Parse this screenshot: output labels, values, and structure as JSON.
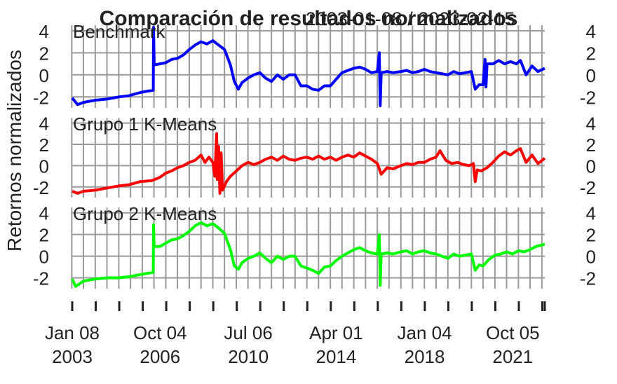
{
  "chart_data": {
    "type": "line",
    "title": "Comparación de resultados normalizados",
    "title_overlap": "2003-01-08 / 2023-02-15",
    "ylabel": "Retornos normalizados",
    "xlabel": "",
    "x_range": [
      "2003-01-08",
      "2023-02-15"
    ],
    "x_ticks": [
      {
        "date": "2003-01-08",
        "line1": "Jan 08",
        "line2": "2003"
      },
      {
        "date": "2006-10-04",
        "line1": "Oct 04",
        "line2": "2006"
      },
      {
        "date": "2010-07-06",
        "line1": "Jul 06",
        "line2": "2010"
      },
      {
        "date": "2014-04-01",
        "line1": "Apr 01",
        "line2": "2014"
      },
      {
        "date": "2018-01-04",
        "line1": "Jan 04",
        "line2": "2018"
      },
      {
        "date": "2021-10-05",
        "line1": "Oct 05",
        "line2": "2021"
      }
    ],
    "grid": true,
    "y_ticks": [
      "4",
      "2",
      "0",
      "-2"
    ],
    "panels": [
      {
        "name": "Benchmark",
        "color": "#0000FF",
        "ylim": [
          -3,
          4.5
        ],
        "points": [
          [
            "2003-01-08",
            -2.1
          ],
          [
            "2003-04-01",
            -2.7
          ],
          [
            "2003-07-01",
            -2.5
          ],
          [
            "2004-01-01",
            -2.3
          ],
          [
            "2004-07-01",
            -2.2
          ],
          [
            "2005-01-01",
            -2.0
          ],
          [
            "2005-06-01",
            -1.9
          ],
          [
            "2005-12-01",
            -1.6
          ],
          [
            "2006-03-01",
            -1.5
          ],
          [
            "2006-06-20",
            -1.4
          ],
          [
            "2006-06-25",
            4.3
          ],
          [
            "2006-07-05",
            0.9
          ],
          [
            "2006-10-01",
            1.0
          ],
          [
            "2007-01-01",
            1.1
          ],
          [
            "2007-04-01",
            1.4
          ],
          [
            "2007-07-01",
            1.5
          ],
          [
            "2007-10-01",
            1.8
          ],
          [
            "2008-01-01",
            2.3
          ],
          [
            "2008-04-01",
            2.7
          ],
          [
            "2008-07-01",
            3.0
          ],
          [
            "2008-10-01",
            2.8
          ],
          [
            "2009-01-01",
            3.1
          ],
          [
            "2009-04-01",
            2.7
          ],
          [
            "2009-07-01",
            2.3
          ],
          [
            "2009-10-01",
            0.9
          ],
          [
            "2009-12-01",
            -0.6
          ],
          [
            "2010-02-01",
            -1.3
          ],
          [
            "2010-04-01",
            -0.7
          ],
          [
            "2010-07-01",
            -0.3
          ],
          [
            "2010-10-01",
            0.0
          ],
          [
            "2011-01-01",
            0.2
          ],
          [
            "2011-04-01",
            -0.3
          ],
          [
            "2011-07-01",
            -0.6
          ],
          [
            "2011-10-01",
            0.0
          ],
          [
            "2012-01-01",
            -0.4
          ],
          [
            "2012-04-01",
            0.0
          ],
          [
            "2012-07-01",
            0.0
          ],
          [
            "2012-10-01",
            -1.0
          ],
          [
            "2013-01-01",
            -1.0
          ],
          [
            "2013-04-01",
            -1.3
          ],
          [
            "2013-07-01",
            -1.4
          ],
          [
            "2013-10-01",
            -1.0
          ],
          [
            "2014-01-01",
            -1.0
          ],
          [
            "2014-04-01",
            -0.4
          ],
          [
            "2014-07-01",
            0.2
          ],
          [
            "2014-10-01",
            0.4
          ],
          [
            "2015-01-01",
            0.6
          ],
          [
            "2015-04-01",
            0.7
          ],
          [
            "2015-07-01",
            0.5
          ],
          [
            "2015-10-01",
            0.2
          ],
          [
            "2016-01-01",
            0.3
          ],
          [
            "2016-02-01",
            2.0
          ],
          [
            "2016-02-15",
            -2.8
          ],
          [
            "2016-03-01",
            0.2
          ],
          [
            "2016-06-01",
            0.3
          ],
          [
            "2016-09-01",
            0.2
          ],
          [
            "2017-01-01",
            0.3
          ],
          [
            "2017-04-01",
            0.4
          ],
          [
            "2017-07-01",
            0.2
          ],
          [
            "2017-10-01",
            0.3
          ],
          [
            "2018-01-01",
            0.5
          ],
          [
            "2018-04-01",
            0.3
          ],
          [
            "2018-07-01",
            0.2
          ],
          [
            "2018-10-01",
            0.1
          ],
          [
            "2019-01-01",
            0.0
          ],
          [
            "2019-04-01",
            0.3
          ],
          [
            "2019-07-01",
            0.1
          ],
          [
            "2019-10-01",
            0.2
          ],
          [
            "2020-01-01",
            0.3
          ],
          [
            "2020-03-01",
            -1.3
          ],
          [
            "2020-05-01",
            -0.9
          ],
          [
            "2020-07-01",
            -0.9
          ],
          [
            "2020-08-01",
            1.4
          ],
          [
            "2020-08-15",
            -1.1
          ],
          [
            "2020-09-01",
            1.0
          ],
          [
            "2020-12-01",
            1.0
          ],
          [
            "2021-03-01",
            1.3
          ],
          [
            "2021-06-01",
            1.0
          ],
          [
            "2021-09-01",
            1.2
          ],
          [
            "2021-12-01",
            1.0
          ],
          [
            "2022-02-01",
            1.3
          ],
          [
            "2022-05-01",
            0.0
          ],
          [
            "2022-08-01",
            0.8
          ],
          [
            "2022-11-01",
            0.3
          ],
          [
            "2023-02-15",
            0.6
          ]
        ]
      },
      {
        "name": "Grupo 1 K-Means",
        "color": "#FF0000",
        "ylim": [
          -3,
          4.5
        ],
        "points": [
          [
            "2003-01-08",
            -2.4
          ],
          [
            "2003-04-01",
            -2.6
          ],
          [
            "2003-07-01",
            -2.4
          ],
          [
            "2004-01-01",
            -2.3
          ],
          [
            "2004-07-01",
            -2.1
          ],
          [
            "2005-01-01",
            -1.9
          ],
          [
            "2005-06-01",
            -1.8
          ],
          [
            "2005-12-01",
            -1.5
          ],
          [
            "2006-06-01",
            -1.4
          ],
          [
            "2006-10-01",
            -1.1
          ],
          [
            "2007-01-01",
            -0.7
          ],
          [
            "2007-04-01",
            -0.5
          ],
          [
            "2007-07-01",
            -0.2
          ],
          [
            "2007-10-01",
            0.0
          ],
          [
            "2008-01-01",
            0.3
          ],
          [
            "2008-04-01",
            0.5
          ],
          [
            "2008-07-01",
            1.0
          ],
          [
            "2008-09-01",
            0.3
          ],
          [
            "2008-11-01",
            0.8
          ],
          [
            "2009-01-01",
            0.3
          ],
          [
            "2009-02-01",
            -1.0
          ],
          [
            "2009-03-01",
            3.0
          ],
          [
            "2009-03-10",
            -1.3
          ],
          [
            "2009-04-01",
            1.8
          ],
          [
            "2009-04-20",
            -2.6
          ],
          [
            "2009-05-10",
            1.2
          ],
          [
            "2009-06-01",
            -2.3
          ],
          [
            "2009-08-01",
            -1.5
          ],
          [
            "2009-10-01",
            -1.0
          ],
          [
            "2010-01-01",
            -0.5
          ],
          [
            "2010-04-01",
            0.0
          ],
          [
            "2010-07-01",
            0.3
          ],
          [
            "2010-10-01",
            0.1
          ],
          [
            "2011-01-01",
            0.3
          ],
          [
            "2011-04-01",
            0.6
          ],
          [
            "2011-07-01",
            0.8
          ],
          [
            "2011-10-01",
            0.5
          ],
          [
            "2012-01-01",
            0.9
          ],
          [
            "2012-04-01",
            0.6
          ],
          [
            "2012-07-01",
            0.5
          ],
          [
            "2012-10-01",
            0.7
          ],
          [
            "2013-01-01",
            0.8
          ],
          [
            "2013-04-01",
            0.6
          ],
          [
            "2013-07-01",
            0.9
          ],
          [
            "2013-10-01",
            0.6
          ],
          [
            "2014-01-01",
            0.8
          ],
          [
            "2014-04-01",
            0.5
          ],
          [
            "2014-07-01",
            0.8
          ],
          [
            "2014-10-01",
            1.0
          ],
          [
            "2015-01-01",
            0.8
          ],
          [
            "2015-04-01",
            1.2
          ],
          [
            "2015-07-01",
            0.9
          ],
          [
            "2015-10-01",
            0.6
          ],
          [
            "2016-01-01",
            0.2
          ],
          [
            "2016-03-01",
            -0.8
          ],
          [
            "2016-06-01",
            -0.2
          ],
          [
            "2016-09-01",
            -0.3
          ],
          [
            "2017-01-01",
            0.0
          ],
          [
            "2017-04-01",
            0.2
          ],
          [
            "2017-07-01",
            0.1
          ],
          [
            "2017-10-01",
            0.3
          ],
          [
            "2018-01-01",
            0.3
          ],
          [
            "2018-04-01",
            0.6
          ],
          [
            "2018-07-01",
            0.8
          ],
          [
            "2018-09-01",
            1.4
          ],
          [
            "2018-12-01",
            0.5
          ],
          [
            "2019-03-01",
            0.2
          ],
          [
            "2019-06-01",
            0.3
          ],
          [
            "2019-09-01",
            0.1
          ],
          [
            "2019-12-01",
            0.0
          ],
          [
            "2020-02-01",
            0.2
          ],
          [
            "2020-03-01",
            -1.5
          ],
          [
            "2020-04-01",
            -0.4
          ],
          [
            "2020-06-01",
            -0.5
          ],
          [
            "2020-09-01",
            -0.2
          ],
          [
            "2020-12-01",
            0.3
          ],
          [
            "2021-03-01",
            0.9
          ],
          [
            "2021-06-01",
            1.3
          ],
          [
            "2021-09-01",
            1.0
          ],
          [
            "2021-12-01",
            1.4
          ],
          [
            "2022-02-01",
            1.6
          ],
          [
            "2022-05-01",
            0.3
          ],
          [
            "2022-08-01",
            1.0
          ],
          [
            "2022-11-01",
            0.2
          ],
          [
            "2023-02-15",
            0.7
          ]
        ]
      },
      {
        "name": "Grupo 2 K-Means",
        "color": "#00FF00",
        "ylim": [
          -3,
          4.5
        ],
        "points": [
          [
            "2003-01-08",
            -2.1
          ],
          [
            "2003-03-01",
            -2.8
          ],
          [
            "2003-07-01",
            -2.3
          ],
          [
            "2004-01-01",
            -2.1
          ],
          [
            "2004-07-01",
            -2.0
          ],
          [
            "2005-01-01",
            -2.0
          ],
          [
            "2005-06-01",
            -1.9
          ],
          [
            "2005-12-01",
            -1.7
          ],
          [
            "2006-03-01",
            -1.6
          ],
          [
            "2006-06-20",
            -1.5
          ],
          [
            "2006-06-25",
            2.9
          ],
          [
            "2006-07-05",
            0.9
          ],
          [
            "2006-10-01",
            0.9
          ],
          [
            "2007-01-01",
            1.2
          ],
          [
            "2007-04-01",
            1.5
          ],
          [
            "2007-07-01",
            1.6
          ],
          [
            "2007-10-01",
            1.9
          ],
          [
            "2008-01-01",
            2.3
          ],
          [
            "2008-04-01",
            2.8
          ],
          [
            "2008-07-01",
            3.1
          ],
          [
            "2008-10-01",
            2.8
          ],
          [
            "2009-01-01",
            3.0
          ],
          [
            "2009-04-01",
            2.6
          ],
          [
            "2009-07-01",
            2.1
          ],
          [
            "2009-10-01",
            0.6
          ],
          [
            "2009-12-01",
            -0.9
          ],
          [
            "2010-02-01",
            -1.2
          ],
          [
            "2010-04-01",
            -0.6
          ],
          [
            "2010-07-01",
            -0.2
          ],
          [
            "2010-10-01",
            0.0
          ],
          [
            "2011-01-01",
            0.3
          ],
          [
            "2011-04-01",
            -0.2
          ],
          [
            "2011-07-01",
            -0.6
          ],
          [
            "2011-10-01",
            0.0
          ],
          [
            "2012-01-01",
            -0.3
          ],
          [
            "2012-04-01",
            0.0
          ],
          [
            "2012-07-01",
            0.0
          ],
          [
            "2012-10-01",
            -0.9
          ],
          [
            "2013-01-01",
            -1.1
          ],
          [
            "2013-04-01",
            -1.3
          ],
          [
            "2013-07-01",
            -1.6
          ],
          [
            "2013-10-01",
            -1.0
          ],
          [
            "2014-01-01",
            -0.9
          ],
          [
            "2014-04-01",
            -0.4
          ],
          [
            "2014-07-01",
            0.0
          ],
          [
            "2014-10-01",
            0.3
          ],
          [
            "2015-01-01",
            0.6
          ],
          [
            "2015-04-01",
            0.8
          ],
          [
            "2015-07-01",
            0.5
          ],
          [
            "2015-10-01",
            0.3
          ],
          [
            "2016-01-01",
            0.2
          ],
          [
            "2016-02-01",
            2.0
          ],
          [
            "2016-02-15",
            -2.7
          ],
          [
            "2016-03-01",
            0.2
          ],
          [
            "2016-06-01",
            0.3
          ],
          [
            "2016-09-01",
            0.2
          ],
          [
            "2017-01-01",
            0.4
          ],
          [
            "2017-04-01",
            0.5
          ],
          [
            "2017-07-01",
            0.2
          ],
          [
            "2017-10-01",
            0.4
          ],
          [
            "2018-01-01",
            0.5
          ],
          [
            "2018-04-01",
            0.3
          ],
          [
            "2018-07-01",
            0.2
          ],
          [
            "2018-10-01",
            0.0
          ],
          [
            "2019-01-01",
            -0.2
          ],
          [
            "2019-04-01",
            0.2
          ],
          [
            "2019-07-01",
            0.0
          ],
          [
            "2019-10-01",
            0.1
          ],
          [
            "2020-01-01",
            0.2
          ],
          [
            "2020-03-01",
            -1.3
          ],
          [
            "2020-05-01",
            -0.8
          ],
          [
            "2020-07-01",
            -0.9
          ],
          [
            "2020-10-01",
            -0.3
          ],
          [
            "2021-01-01",
            0.1
          ],
          [
            "2021-04-01",
            0.2
          ],
          [
            "2021-07-01",
            0.4
          ],
          [
            "2021-10-01",
            0.2
          ],
          [
            "2022-01-01",
            0.5
          ],
          [
            "2022-04-01",
            0.4
          ],
          [
            "2022-07-01",
            0.6
          ],
          [
            "2022-10-01",
            0.9
          ],
          [
            "2023-02-15",
            1.1
          ]
        ]
      }
    ]
  }
}
